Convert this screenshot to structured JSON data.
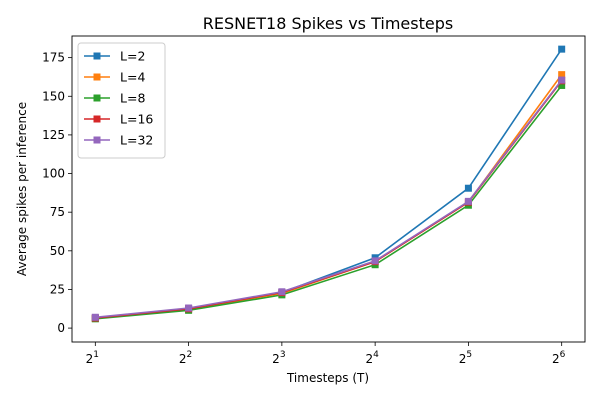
{
  "chart_data": {
    "type": "line",
    "title": "RESNET18 Spikes vs Timesteps",
    "xlabel": "Timesteps (T)",
    "ylabel": "Average spikes per inference",
    "x": [
      1,
      2,
      3,
      4,
      5,
      6
    ],
    "x_tick_labels": [
      {
        "base": "2",
        "exp": "1"
      },
      {
        "base": "2",
        "exp": "2"
      },
      {
        "base": "2",
        "exp": "3"
      },
      {
        "base": "2",
        "exp": "4"
      },
      {
        "base": "2",
        "exp": "5"
      },
      {
        "base": "2",
        "exp": "6"
      }
    ],
    "y_ticks": [
      0,
      25,
      50,
      75,
      100,
      125,
      150,
      175
    ],
    "ylim": [
      -9,
      189
    ],
    "xlim": [
      0.75,
      6.25
    ],
    "x_scale": "log2",
    "grid": false,
    "legend_position": "top-left",
    "marker": "square",
    "series": [
      {
        "name": "L=2",
        "color": "#1f77b4",
        "values": [
          6.5,
          12.5,
          23,
          45.5,
          90.5,
          180.5
        ]
      },
      {
        "name": "L=4",
        "color": "#ff7f0e",
        "values": [
          6.3,
          12.0,
          22.5,
          43.0,
          81.5,
          164.0
        ]
      },
      {
        "name": "L=8",
        "color": "#2ca02c",
        "values": [
          6.0,
          11.5,
          21.5,
          41.0,
          79.5,
          157.0
        ]
      },
      {
        "name": "L=16",
        "color": "#d62728",
        "values": [
          6.5,
          12.5,
          23.0,
          43.0,
          81.5,
          160.0
        ]
      },
      {
        "name": "L=32",
        "color": "#9467bd",
        "values": [
          7.0,
          13.0,
          23.5,
          43.5,
          82.0,
          160.5
        ]
      }
    ]
  }
}
